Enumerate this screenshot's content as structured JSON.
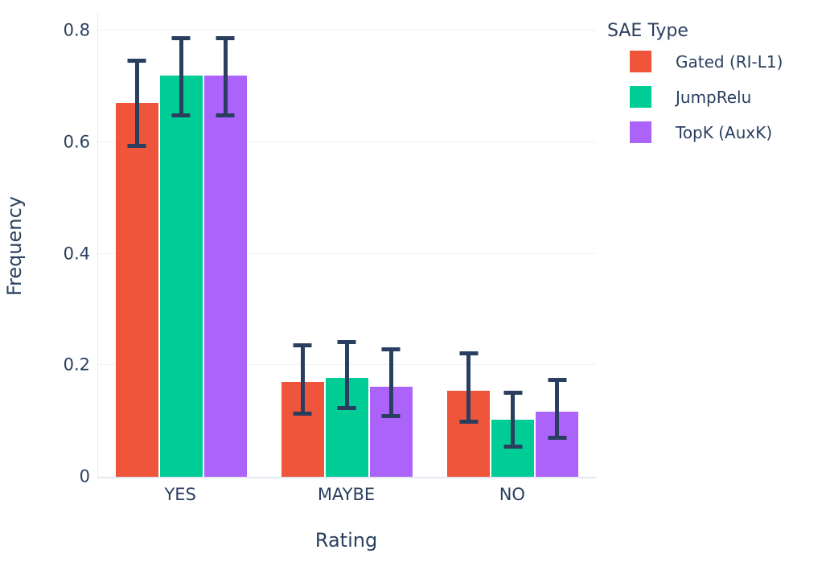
{
  "chart_data": {
    "type": "bar",
    "title": "",
    "xlabel": "Rating",
    "ylabel": "Frequency",
    "categories": [
      "YES",
      "MAYBE",
      "NO"
    ],
    "series": [
      {
        "name": "Gated (RI-L1)",
        "color": "#EF553B",
        "values": [
          0.67,
          0.17,
          0.155
        ],
        "error_high": [
          0.75,
          0.24,
          0.225
        ],
        "error_low": [
          0.59,
          0.11,
          0.095
        ]
      },
      {
        "name": "JumpRelu",
        "color": "#00CC96",
        "values": [
          0.72,
          0.178,
          0.103
        ],
        "error_high": [
          0.79,
          0.245,
          0.155
        ],
        "error_low": [
          0.645,
          0.12,
          0.05
        ]
      },
      {
        "name": "TopK (AuxK)",
        "color": "#AB63FA",
        "values": [
          0.72,
          0.162,
          0.117
        ],
        "error_high": [
          0.79,
          0.232,
          0.178
        ],
        "error_low": [
          0.645,
          0.105,
          0.066
        ]
      }
    ],
    "ylim": [
      0,
      0.835
    ],
    "yticks": [
      0,
      0.2,
      0.4,
      0.6,
      0.8
    ],
    "ytick_labels": [
      "0",
      "0.2",
      "0.4",
      "0.6",
      "0.8"
    ],
    "grid": true,
    "legend_title": "SAE Type",
    "legend_position": "top-right",
    "error_bar_color": "#2a3f5f",
    "text_color": "#2a3f5f"
  }
}
